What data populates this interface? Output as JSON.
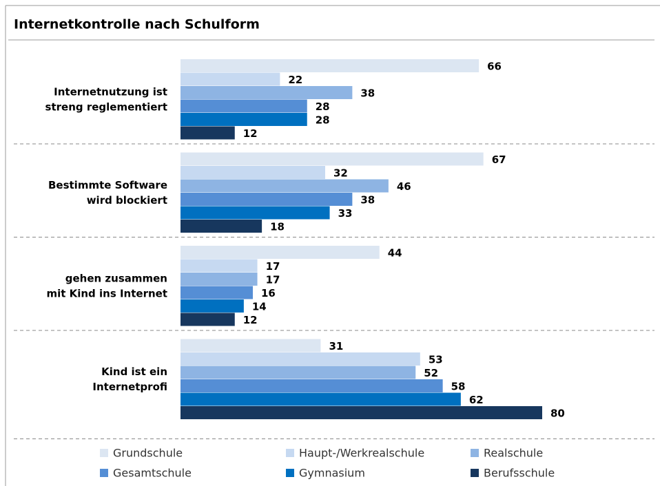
{
  "chart_data": {
    "type": "bar",
    "orientation": "horizontal",
    "title": "Internetkontrolle nach Schulform",
    "categories": [
      "Internetnutzung ist\nstreng reglementiert",
      "Bestimmte Software\nwird blockiert",
      "gehen zusammen\nmit Kind ins Internet",
      "Kind ist ein\nInternetprofi"
    ],
    "series": [
      {
        "name": "Grundschule",
        "color": "#dce6f2",
        "values": [
          66,
          67,
          44,
          31
        ]
      },
      {
        "name": "Haupt-/Werkrealschule",
        "color": "#c6d9f1",
        "values": [
          22,
          32,
          17,
          53
        ]
      },
      {
        "name": "Realschule",
        "color": "#8eb4e3",
        "values": [
          38,
          46,
          17,
          52
        ]
      },
      {
        "name": "Gesamtschule",
        "color": "#558ed5",
        "values": [
          28,
          38,
          16,
          58
        ]
      },
      {
        "name": "Gymnasium",
        "color": "#0070c0",
        "values": [
          28,
          33,
          14,
          62
        ]
      },
      {
        "name": "Berufsschule",
        "color": "#17375e",
        "values": [
          12,
          18,
          12,
          80
        ]
      }
    ],
    "legend": "bottom"
  }
}
